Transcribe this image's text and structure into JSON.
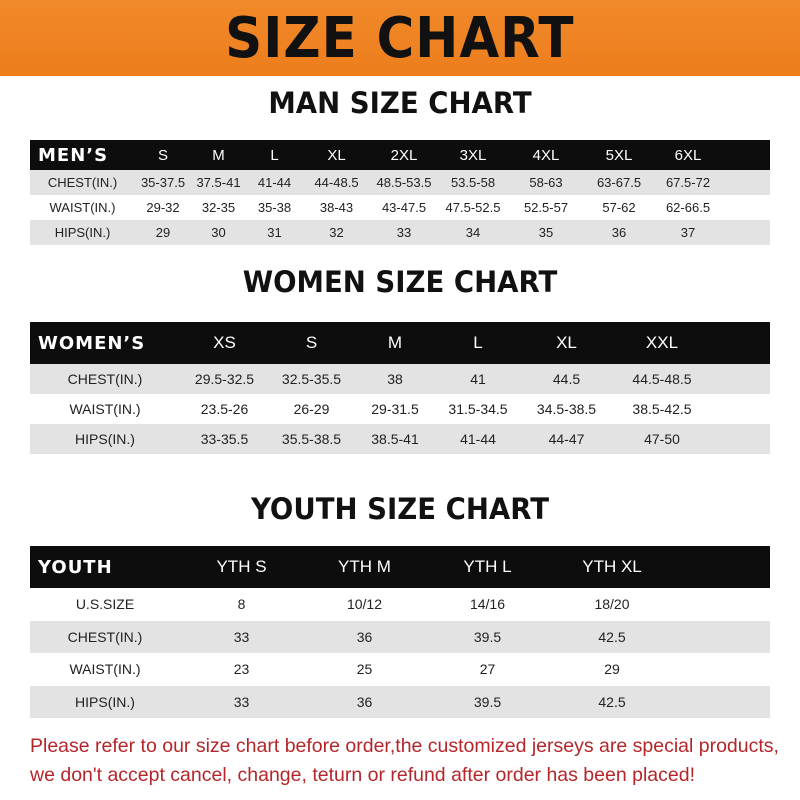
{
  "banner_title": "SIZE CHART",
  "men": {
    "title": "MAN SIZE CHART",
    "header": [
      "MEN’S",
      "S",
      "M",
      "L",
      "XL",
      "2XL",
      "3XL",
      "4XL",
      "5XL",
      "6XL"
    ],
    "rows": [
      [
        "CHEST(IN.)",
        "35-37.5",
        "37.5-41",
        "41-44",
        "44-48.5",
        "48.5-53.5",
        "53.5-58",
        "58-63",
        "63-67.5",
        "67.5-72"
      ],
      [
        "WAIST(IN.)",
        "29-32",
        "32-35",
        "35-38",
        "38-43",
        "43-47.5",
        "47.5-52.5",
        "52.5-57",
        "57-62",
        "62-66.5"
      ],
      [
        "HIPS(IN.)",
        "29",
        "30",
        "31",
        "32",
        "33",
        "34",
        "35",
        "36",
        "37"
      ]
    ]
  },
  "women": {
    "title": "WOMEN SIZE CHART",
    "header": [
      "WOMEN’S",
      "XS",
      "S",
      "M",
      "L",
      "XL",
      "XXL"
    ],
    "rows": [
      [
        "CHEST(IN.)",
        "29.5-32.5",
        "32.5-35.5",
        "38",
        "41",
        "44.5",
        "44.5-48.5"
      ],
      [
        "WAIST(IN.)",
        "23.5-26",
        "26-29",
        "29-31.5",
        "31.5-34.5",
        "34.5-38.5",
        "38.5-42.5"
      ],
      [
        "HIPS(IN.)",
        "33-35.5",
        "35.5-38.5",
        "38.5-41",
        "41-44",
        "44-47",
        "47-50"
      ]
    ]
  },
  "youth": {
    "title": "YOUTH SIZE CHART",
    "header": [
      "YOUTH",
      "YTH S",
      "YTH M",
      "YTH L",
      "YTH XL"
    ],
    "rows": [
      [
        "U.S.SIZE",
        "8",
        "10/12",
        "14/16",
        "18/20"
      ],
      [
        "CHEST(IN.)",
        "33",
        "36",
        "39.5",
        "42.5"
      ],
      [
        "WAIST(IN.)",
        "23",
        "25",
        "27",
        "29"
      ],
      [
        "HIPS(IN.)",
        "33",
        "36",
        "39.5",
        "42.5"
      ]
    ]
  },
  "note": {
    "line1": "Please refer to our size chart before order,the customized jerseys are special products,",
    "line2": "we don't accept cancel, change, teturn or refund after order has been placed!"
  },
  "colors": {
    "banner": "#ee7d1c",
    "header_bg": "#0d0d0d",
    "row_gray": "#e3e3e3",
    "note": "#b5262a"
  }
}
